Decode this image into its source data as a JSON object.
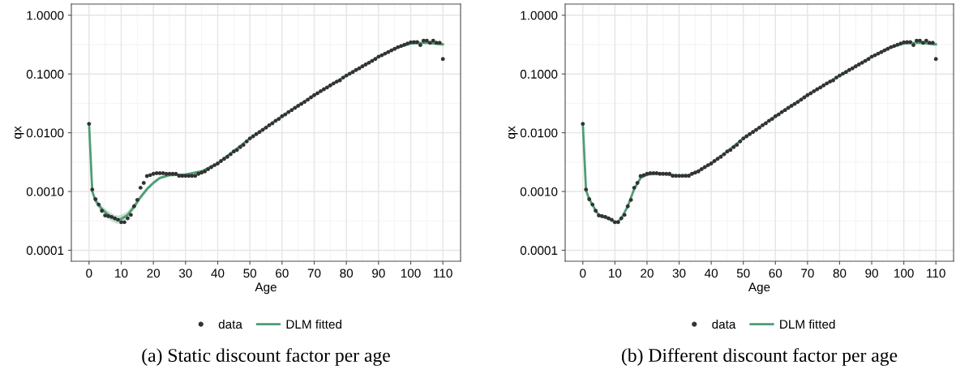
{
  "chart_data": [
    {
      "type": "scatter",
      "title": "(a) Static discount factor per age",
      "xlabel": "Age",
      "ylabel": "qx",
      "log": "y",
      "grid": true,
      "legend": "bottom",
      "xlim": [
        -5.5,
        115.5
      ],
      "xticks": [
        0,
        10,
        20,
        30,
        40,
        50,
        60,
        70,
        80,
        90,
        100,
        110
      ],
      "ylim": [
        6.5e-05,
        1.55
      ],
      "yticks": [
        {
          "value": 0.0001,
          "label": "0.0001"
        },
        {
          "value": 0.001,
          "label": "0.0010"
        },
        {
          "value": 0.01,
          "label": "0.0100"
        },
        {
          "value": 0.1,
          "label": "0.1000"
        },
        {
          "value": 1,
          "label": "1.0000"
        }
      ],
      "series": [
        {
          "name": "data",
          "marker": "circle",
          "color": "#333333",
          "x": [
            0,
            1,
            2,
            3,
            4,
            5,
            6,
            7,
            8,
            9,
            10,
            11,
            12,
            13,
            14,
            15,
            16,
            17,
            18,
            19,
            20,
            21,
            22,
            23,
            24,
            25,
            26,
            27,
            28,
            29,
            30,
            31,
            32,
            33,
            34,
            35,
            36,
            37,
            38,
            39,
            40,
            41,
            42,
            43,
            44,
            45,
            46,
            47,
            48,
            49,
            50,
            51,
            52,
            53,
            54,
            55,
            56,
            57,
            58,
            59,
            60,
            61,
            62,
            63,
            64,
            65,
            66,
            67,
            68,
            69,
            70,
            71,
            72,
            73,
            74,
            75,
            76,
            77,
            78,
            79,
            80,
            81,
            82,
            83,
            84,
            85,
            86,
            87,
            88,
            89,
            90,
            91,
            92,
            93,
            94,
            95,
            96,
            97,
            98,
            99,
            100,
            101,
            102,
            103,
            104,
            105,
            106,
            107,
            108,
            109,
            110
          ],
          "values": [
            0.0142,
            0.00108,
            0.00074,
            0.0006,
            0.00047,
            0.00039,
            0.00038,
            0.00037,
            0.00035,
            0.00033,
            0.0003,
            0.0003,
            0.00035,
            0.0004,
            0.00056,
            0.00072,
            0.00116,
            0.0014,
            0.00183,
            0.0019,
            0.002,
            0.00205,
            0.00205,
            0.00205,
            0.002,
            0.002,
            0.002,
            0.002,
            0.00185,
            0.00185,
            0.00185,
            0.00185,
            0.00185,
            0.00185,
            0.002,
            0.0021,
            0.0022,
            0.0024,
            0.0026,
            0.0028,
            0.003,
            0.0033,
            0.0036,
            0.0039,
            0.0043,
            0.0048,
            0.0051,
            0.0057,
            0.0062,
            0.0071,
            0.008,
            0.0087,
            0.0095,
            0.0103,
            0.0112,
            0.0122,
            0.0134,
            0.0145,
            0.016,
            0.0172,
            0.0191,
            0.0205,
            0.0225,
            0.0243,
            0.0265,
            0.0287,
            0.031,
            0.0335,
            0.0365,
            0.04,
            0.0437,
            0.047,
            0.051,
            0.055,
            0.059,
            0.064,
            0.069,
            0.074,
            0.078,
            0.087,
            0.094,
            0.101,
            0.108,
            0.117,
            0.125,
            0.135,
            0.145,
            0.155,
            0.167,
            0.18,
            0.197,
            0.208,
            0.222,
            0.236,
            0.252,
            0.268,
            0.286,
            0.3,
            0.315,
            0.33,
            0.346,
            0.35,
            0.35,
            0.31,
            0.37,
            0.37,
            0.34,
            0.37,
            0.34,
            0.34,
            0.18
          ]
        },
        {
          "name": "DLM fitted",
          "type": "line",
          "marker": "none",
          "line_style": "solid",
          "color": "#4e9e74",
          "x": [
            0,
            1,
            2,
            4,
            6,
            8,
            9,
            10,
            12,
            14,
            16,
            18,
            20,
            22,
            25,
            30,
            35,
            40,
            50,
            60,
            70,
            80,
            90,
            95,
            100,
            105,
            110
          ],
          "values": [
            0.0142,
            0.001,
            0.0007,
            0.0005,
            0.0004,
            0.00034,
            0.00033,
            0.00034,
            0.0004,
            0.00055,
            0.0008,
            0.0011,
            0.0014,
            0.0017,
            0.0019,
            0.00195,
            0.0022,
            0.003,
            0.008,
            0.0191,
            0.0437,
            0.094,
            0.197,
            0.27,
            0.33,
            0.34,
            0.32
          ],
          "lower": [
            0.0142,
            0.0009,
            0.00062,
            0.00043,
            0.00034,
            0.00029,
            0.00028,
            0.00029,
            0.00035,
            0.00049,
            0.00072,
            0.001,
            0.0013,
            0.0016,
            0.0018,
            0.00185,
            0.0021,
            0.0029,
            0.0077,
            0.0185,
            0.0425,
            0.091,
            0.19,
            0.26,
            0.315,
            0.32,
            0.3
          ],
          "upper": [
            0.0142,
            0.0011,
            0.00078,
            0.00057,
            0.00046,
            0.0004,
            0.00039,
            0.0004,
            0.00046,
            0.00062,
            0.00088,
            0.0012,
            0.0015,
            0.0018,
            0.002,
            0.00205,
            0.0023,
            0.0031,
            0.0083,
            0.0197,
            0.045,
            0.097,
            0.204,
            0.28,
            0.345,
            0.36,
            0.34
          ]
        }
      ]
    },
    {
      "type": "scatter",
      "title": "(b) Different discount factor per age",
      "xlabel": "Age",
      "ylabel": "qx",
      "log": "y",
      "grid": true,
      "legend": "bottom",
      "xlim": [
        -5.5,
        115.5
      ],
      "xticks": [
        0,
        10,
        20,
        30,
        40,
        50,
        60,
        70,
        80,
        90,
        100,
        110
      ],
      "ylim": [
        6.5e-05,
        1.55
      ],
      "yticks": [
        {
          "value": 0.0001,
          "label": "0.0001"
        },
        {
          "value": 0.001,
          "label": "0.0010"
        },
        {
          "value": 0.01,
          "label": "0.0100"
        },
        {
          "value": 0.1,
          "label": "0.1000"
        },
        {
          "value": 1,
          "label": "1.0000"
        }
      ],
      "series": [
        {
          "name": "data",
          "marker": "circle",
          "color": "#333333",
          "x": [
            0,
            1,
            2,
            3,
            4,
            5,
            6,
            7,
            8,
            9,
            10,
            11,
            12,
            13,
            14,
            15,
            16,
            17,
            18,
            19,
            20,
            21,
            22,
            23,
            24,
            25,
            26,
            27,
            28,
            29,
            30,
            31,
            32,
            33,
            34,
            35,
            36,
            37,
            38,
            39,
            40,
            41,
            42,
            43,
            44,
            45,
            46,
            47,
            48,
            49,
            50,
            51,
            52,
            53,
            54,
            55,
            56,
            57,
            58,
            59,
            60,
            61,
            62,
            63,
            64,
            65,
            66,
            67,
            68,
            69,
            70,
            71,
            72,
            73,
            74,
            75,
            76,
            77,
            78,
            79,
            80,
            81,
            82,
            83,
            84,
            85,
            86,
            87,
            88,
            89,
            90,
            91,
            92,
            93,
            94,
            95,
            96,
            97,
            98,
            99,
            100,
            101,
            102,
            103,
            104,
            105,
            106,
            107,
            108,
            109,
            110
          ],
          "values": [
            0.0142,
            0.00108,
            0.00074,
            0.0006,
            0.00047,
            0.00039,
            0.00038,
            0.00037,
            0.00035,
            0.00033,
            0.0003,
            0.0003,
            0.00035,
            0.0004,
            0.00056,
            0.00072,
            0.00116,
            0.0014,
            0.00183,
            0.0019,
            0.002,
            0.00205,
            0.00205,
            0.00205,
            0.002,
            0.002,
            0.002,
            0.002,
            0.00185,
            0.00185,
            0.00185,
            0.00185,
            0.00185,
            0.00185,
            0.002,
            0.0021,
            0.0022,
            0.0024,
            0.0026,
            0.0028,
            0.003,
            0.0033,
            0.0036,
            0.0039,
            0.0043,
            0.0048,
            0.0051,
            0.0057,
            0.0062,
            0.0071,
            0.008,
            0.0087,
            0.0095,
            0.0103,
            0.0112,
            0.0122,
            0.0134,
            0.0145,
            0.016,
            0.0172,
            0.0191,
            0.0205,
            0.0225,
            0.0243,
            0.0265,
            0.0287,
            0.031,
            0.0335,
            0.0365,
            0.04,
            0.0437,
            0.047,
            0.051,
            0.055,
            0.059,
            0.064,
            0.069,
            0.074,
            0.078,
            0.087,
            0.094,
            0.101,
            0.108,
            0.117,
            0.125,
            0.135,
            0.145,
            0.155,
            0.167,
            0.18,
            0.197,
            0.208,
            0.222,
            0.236,
            0.252,
            0.268,
            0.286,
            0.3,
            0.315,
            0.33,
            0.346,
            0.35,
            0.35,
            0.31,
            0.37,
            0.37,
            0.34,
            0.37,
            0.34,
            0.34,
            0.18
          ]
        },
        {
          "name": "DLM fitted",
          "type": "line",
          "marker": "none",
          "line_style": "solid",
          "color": "#4e9e74",
          "x": [
            0,
            1,
            2,
            3,
            4,
            5,
            6,
            8,
            10,
            11,
            12,
            14,
            16,
            18,
            20,
            22,
            25,
            28,
            30,
            33,
            35,
            40,
            45,
            50,
            60,
            70,
            80,
            90,
            95,
            100,
            105,
            110
          ],
          "values": [
            0.0142,
            0.00105,
            0.00074,
            0.0006,
            0.00047,
            0.0004,
            0.00038,
            0.00035,
            0.0003,
            0.00031,
            0.00035,
            0.00056,
            0.0011,
            0.0017,
            0.00195,
            0.002,
            0.002,
            0.0019,
            0.00185,
            0.0019,
            0.0021,
            0.003,
            0.0048,
            0.008,
            0.0191,
            0.0437,
            0.094,
            0.197,
            0.275,
            0.33,
            0.34,
            0.32
          ],
          "lower": [
            0.0142,
            0.001,
            0.0007,
            0.00056,
            0.00044,
            0.00037,
            0.00035,
            0.00032,
            0.00028,
            0.00029,
            0.00033,
            0.00052,
            0.001,
            0.0016,
            0.00182,
            0.00188,
            0.00188,
            0.00178,
            0.00174,
            0.00179,
            0.002,
            0.0029,
            0.0046,
            0.0077,
            0.0185,
            0.0425,
            0.091,
            0.19,
            0.265,
            0.315,
            0.32,
            0.3
          ],
          "upper": [
            0.0142,
            0.0011,
            0.00078,
            0.00064,
            0.0005,
            0.00043,
            0.00041,
            0.00038,
            0.00032,
            0.00033,
            0.00037,
            0.0006,
            0.0012,
            0.0018,
            0.00208,
            0.00213,
            0.00213,
            0.00202,
            0.00196,
            0.00202,
            0.0022,
            0.0031,
            0.005,
            0.0083,
            0.0197,
            0.045,
            0.097,
            0.204,
            0.285,
            0.345,
            0.36,
            0.34
          ]
        }
      ]
    }
  ]
}
